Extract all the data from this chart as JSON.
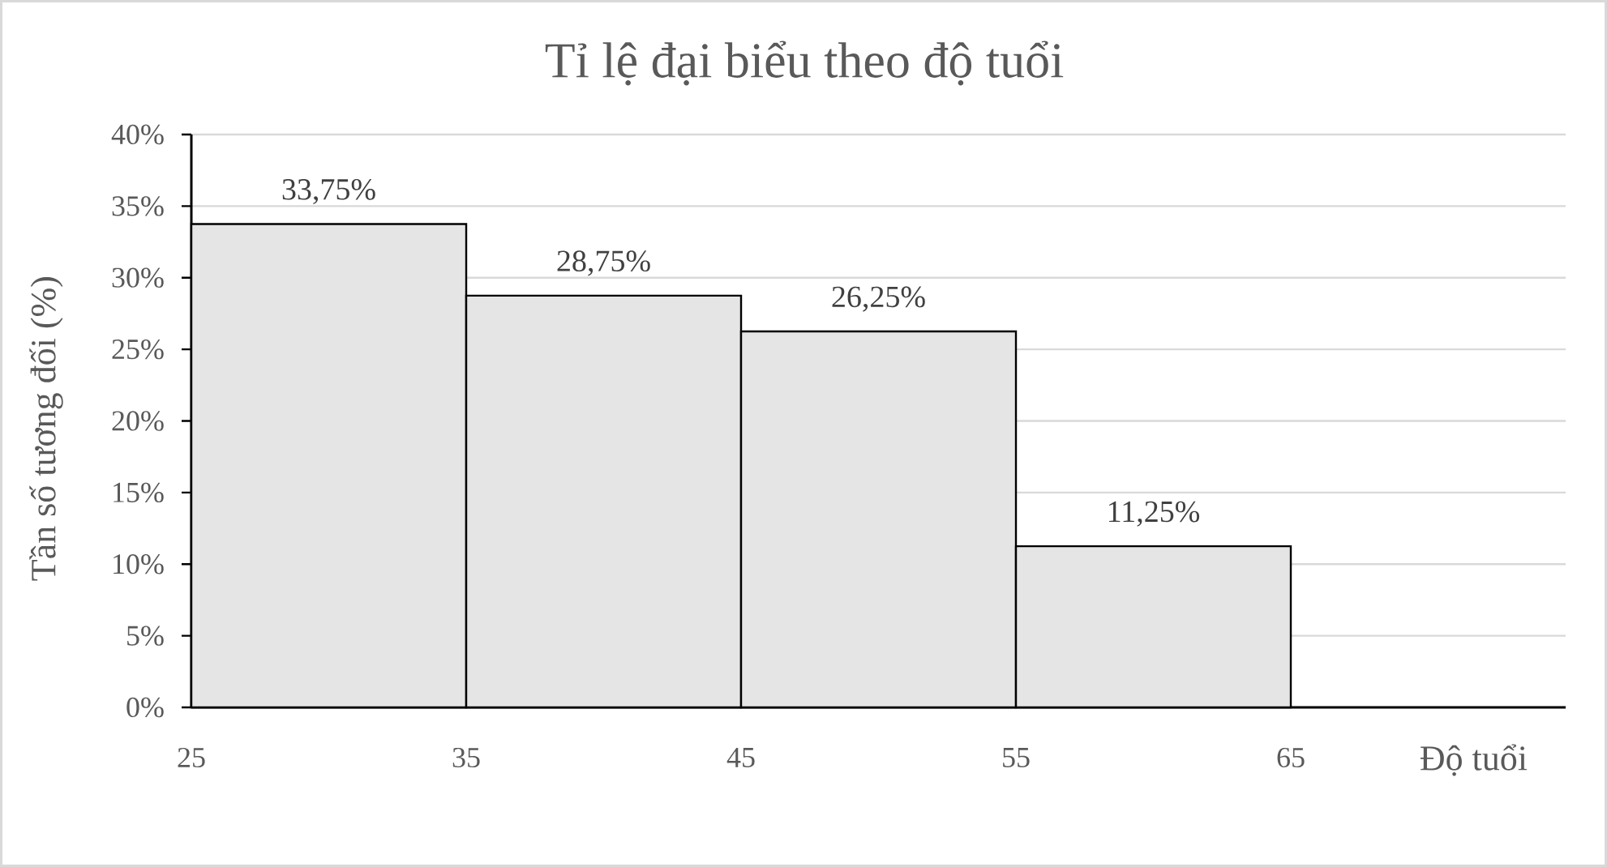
{
  "chart_data": {
    "type": "histogram",
    "title": "Tỉ lệ đại biểu theo độ tuổi",
    "xlabel": "Độ tuổi",
    "ylabel": "Tần số tương đối (%)",
    "bins": [
      25,
      35,
      45,
      55,
      65
    ],
    "values": [
      33.75,
      28.75,
      26.25,
      11.25
    ],
    "value_labels": [
      "33,75%",
      "28,75%",
      "26,25%",
      "11,25%"
    ],
    "color": "#e5e5e5",
    "xlim": [
      25,
      75
    ],
    "xticks": [
      25,
      35,
      45,
      55,
      65
    ],
    "ylim": [
      0,
      40
    ],
    "yticks": [
      {
        "value": 0,
        "label": "0%"
      },
      {
        "value": 5,
        "label": "5%"
      },
      {
        "value": 10,
        "label": "10%"
      },
      {
        "value": 15,
        "label": "15%"
      },
      {
        "value": 20,
        "label": "20%"
      },
      {
        "value": 25,
        "label": "25%"
      },
      {
        "value": 30,
        "label": "30%"
      },
      {
        "value": 35,
        "label": "35%"
      },
      {
        "value": 40,
        "label": "40%"
      }
    ],
    "grid": "y"
  }
}
